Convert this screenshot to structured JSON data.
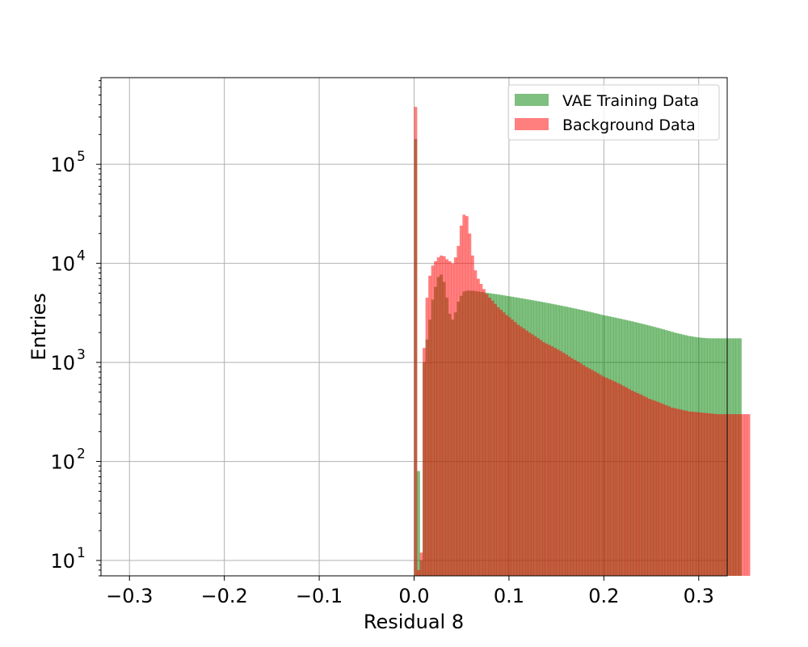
{
  "chart_data": {
    "type": "bar",
    "subtype": "overlaid step histogram",
    "title": "",
    "xlabel": "Residual 8",
    "ylabel": "Entries",
    "xlim": [
      -0.33,
      0.33
    ],
    "ylim": [
      7,
      750000
    ],
    "yscale": "log",
    "grid": true,
    "legend_position": "top-right",
    "x_ticks": [
      -0.3,
      -0.2,
      -0.1,
      0.0,
      0.1,
      0.2,
      0.3
    ],
    "x_tick_labels": [
      "−0.3",
      "−0.2",
      "−0.1",
      "0.0",
      "0.1",
      "0.2",
      "0.3"
    ],
    "y_ticks": [
      10,
      100,
      1000,
      10000,
      100000
    ],
    "y_tick_bases": [
      "10",
      "10",
      "10",
      "10",
      "10"
    ],
    "y_tick_exponents": [
      "1",
      "2",
      "3",
      "4",
      "5"
    ],
    "bin_width": 0.003,
    "bin_start": 0.0,
    "series": [
      {
        "name": "VAE Training Data",
        "color": "#008000",
        "alpha": 0.5,
        "values": [
          180000,
          80,
          10,
          1000,
          1700,
          2700,
          4300,
          5800,
          7300,
          7700,
          6500,
          4500,
          3100,
          2700,
          3200,
          4100,
          4700,
          5200,
          5300,
          5300,
          5300,
          5250,
          5200,
          5150,
          5100,
          5050,
          5000,
          4950,
          4900,
          4850,
          4800,
          4750,
          4700,
          4650,
          4600,
          4550,
          4500,
          4450,
          4400,
          4350,
          4300,
          4250,
          4200,
          4150,
          4100,
          4050,
          4000,
          3950,
          3900,
          3850,
          3800,
          3750,
          3700,
          3650,
          3600,
          3550,
          3500,
          3450,
          3400,
          3350,
          3300,
          3250,
          3200,
          3150,
          3100,
          3050,
          3000,
          2960,
          2920,
          2880,
          2840,
          2800,
          2760,
          2720,
          2680,
          2640,
          2600,
          2560,
          2520,
          2480,
          2440,
          2400,
          2360,
          2320,
          2280,
          2240,
          2200,
          2160,
          2120,
          2080,
          2040,
          2000,
          1970,
          1940,
          1910,
          1880,
          1850,
          1830,
          1810,
          1790,
          1780,
          1770,
          1760,
          1750,
          1750,
          1750,
          1750,
          1750,
          1750,
          1750,
          1750,
          1750,
          1750,
          1750,
          1750
        ]
      },
      {
        "name": "Background Data",
        "color": "#ff0000",
        "alpha": 0.5,
        "values": [
          380000,
          8,
          12,
          1400,
          4500,
          7500,
          9500,
          10500,
          11500,
          12000,
          11800,
          11000,
          10500,
          10000,
          11500,
          15000,
          24000,
          31000,
          30000,
          20000,
          12000,
          8500,
          7000,
          6200,
          5500,
          4900,
          4500,
          4200,
          3900,
          3600,
          3400,
          3200,
          3000,
          2850,
          2700,
          2550,
          2400,
          2300,
          2200,
          2100,
          2000,
          1920,
          1840,
          1760,
          1680,
          1600,
          1550,
          1500,
          1450,
          1400,
          1350,
          1300,
          1250,
          1200,
          1150,
          1100,
          1060,
          1020,
          980,
          940,
          900,
          870,
          840,
          810,
          780,
          750,
          720,
          700,
          680,
          660,
          640,
          620,
          600,
          580,
          560,
          540,
          520,
          505,
          490,
          475,
          460,
          445,
          430,
          420,
          410,
          400,
          390,
          380,
          370,
          360,
          350,
          345,
          340,
          335,
          330,
          325,
          320,
          318,
          316,
          314,
          312,
          310,
          308,
          306,
          304,
          302,
          300,
          300,
          300,
          300,
          300,
          300,
          300,
          300,
          300,
          300,
          300,
          300
        ]
      }
    ]
  }
}
